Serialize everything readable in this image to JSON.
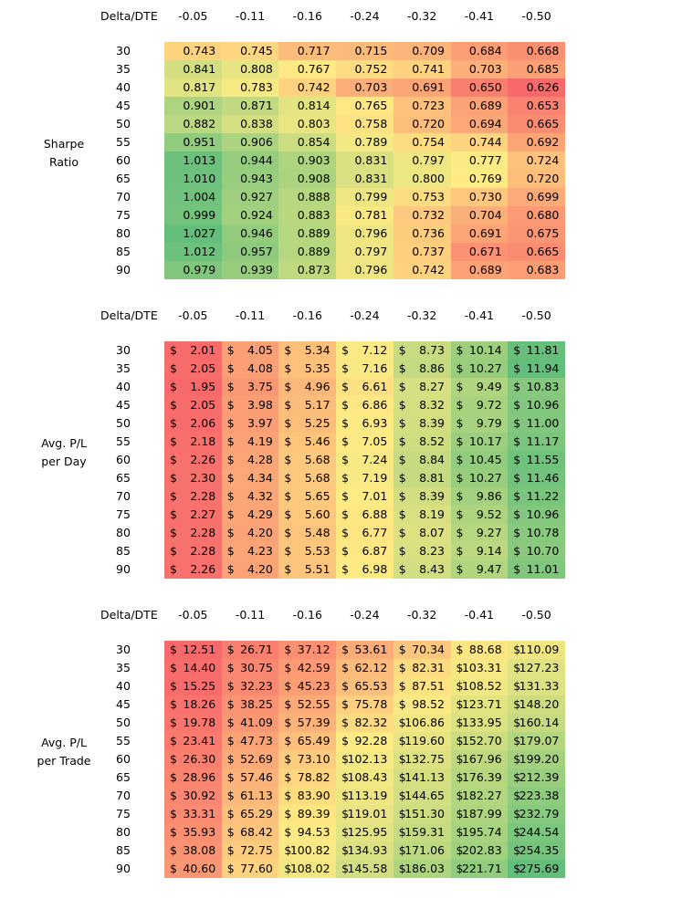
{
  "chart_data": [
    {
      "type": "heatmap",
      "title": "",
      "row_label": "Sharpe Ratio",
      "corner_label": "Delta/DTE",
      "columns": [
        "-0.05",
        "-0.11",
        "-0.16",
        "-0.24",
        "-0.32",
        "-0.41",
        "-0.50"
      ],
      "rows": [
        "30",
        "35",
        "40",
        "45",
        "50",
        "55",
        "60",
        "65",
        "70",
        "75",
        "80",
        "85",
        "90"
      ],
      "prefix": "",
      "decimals": 3,
      "color_scale": "high_green",
      "values": [
        [
          0.743,
          0.745,
          0.717,
          0.715,
          0.709,
          0.684,
          0.668
        ],
        [
          0.841,
          0.808,
          0.767,
          0.752,
          0.741,
          0.703,
          0.685
        ],
        [
          0.817,
          0.783,
          0.742,
          0.703,
          0.691,
          0.65,
          0.626
        ],
        [
          0.901,
          0.871,
          0.814,
          0.765,
          0.723,
          0.689,
          0.653
        ],
        [
          0.882,
          0.838,
          0.803,
          0.758,
          0.72,
          0.694,
          0.665
        ],
        [
          0.951,
          0.906,
          0.854,
          0.789,
          0.754,
          0.744,
          0.692
        ],
        [
          1.013,
          0.944,
          0.903,
          0.831,
          0.797,
          0.777,
          0.724
        ],
        [
          1.01,
          0.943,
          0.908,
          0.831,
          0.8,
          0.769,
          0.72
        ],
        [
          1.004,
          0.927,
          0.888,
          0.799,
          0.753,
          0.73,
          0.699
        ],
        [
          0.999,
          0.924,
          0.883,
          0.781,
          0.732,
          0.704,
          0.68
        ],
        [
          1.027,
          0.946,
          0.889,
          0.796,
          0.736,
          0.691,
          0.675
        ],
        [
          1.012,
          0.957,
          0.889,
          0.797,
          0.737,
          0.671,
          0.665
        ],
        [
          0.979,
          0.939,
          0.873,
          0.796,
          0.742,
          0.689,
          0.683
        ]
      ]
    },
    {
      "type": "heatmap",
      "title": "",
      "row_label": "Avg. P/L per Day",
      "row_label_lines": [
        "Avg. P/L",
        "per Day"
      ],
      "corner_label": "Delta/DTE",
      "columns": [
        "-0.05",
        "-0.11",
        "-0.16",
        "-0.24",
        "-0.32",
        "-0.41",
        "-0.50"
      ],
      "rows": [
        "30",
        "35",
        "40",
        "45",
        "50",
        "55",
        "60",
        "65",
        "70",
        "75",
        "80",
        "85",
        "90"
      ],
      "prefix": "$",
      "decimals": 2,
      "color_scale": "high_green",
      "values": [
        [
          2.01,
          4.05,
          5.34,
          7.12,
          8.73,
          10.14,
          11.81
        ],
        [
          2.05,
          4.08,
          5.35,
          7.16,
          8.86,
          10.27,
          11.94
        ],
        [
          1.95,
          3.75,
          4.96,
          6.61,
          8.27,
          9.49,
          10.83
        ],
        [
          2.05,
          3.98,
          5.17,
          6.86,
          8.32,
          9.72,
          10.96
        ],
        [
          2.06,
          3.97,
          5.25,
          6.93,
          8.39,
          9.79,
          11.0
        ],
        [
          2.18,
          4.19,
          5.46,
          7.05,
          8.52,
          10.17,
          11.17
        ],
        [
          2.26,
          4.28,
          5.68,
          7.24,
          8.84,
          10.45,
          11.55
        ],
        [
          2.3,
          4.34,
          5.68,
          7.19,
          8.81,
          10.27,
          11.46
        ],
        [
          2.28,
          4.32,
          5.65,
          7.01,
          8.39,
          9.86,
          11.22
        ],
        [
          2.27,
          4.29,
          5.6,
          6.88,
          8.19,
          9.52,
          10.96
        ],
        [
          2.28,
          4.2,
          5.48,
          6.77,
          8.07,
          9.27,
          10.78
        ],
        [
          2.28,
          4.23,
          5.53,
          6.87,
          8.23,
          9.14,
          10.7
        ],
        [
          2.26,
          4.2,
          5.51,
          6.98,
          8.43,
          9.47,
          11.01
        ]
      ]
    },
    {
      "type": "heatmap",
      "title": "",
      "row_label": "Avg. P/L per Trade",
      "row_label_lines": [
        "Avg. P/L",
        "per Trade"
      ],
      "corner_label": "Delta/DTE",
      "columns": [
        "-0.05",
        "-0.11",
        "-0.16",
        "-0.24",
        "-0.32",
        "-0.41",
        "-0.50"
      ],
      "rows": [
        "30",
        "35",
        "40",
        "45",
        "50",
        "55",
        "60",
        "65",
        "70",
        "75",
        "80",
        "85",
        "90"
      ],
      "prefix": "$",
      "decimals": 2,
      "color_scale": "high_green",
      "values": [
        [
          12.51,
          26.71,
          37.12,
          53.61,
          70.34,
          88.68,
          110.09
        ],
        [
          14.4,
          30.75,
          42.59,
          62.12,
          82.31,
          103.31,
          127.23
        ],
        [
          15.25,
          32.23,
          45.23,
          65.53,
          87.51,
          108.52,
          131.33
        ],
        [
          18.26,
          38.25,
          52.55,
          75.78,
          98.52,
          123.71,
          148.2
        ],
        [
          19.78,
          41.09,
          57.39,
          82.32,
          106.86,
          133.95,
          160.14
        ],
        [
          23.41,
          47.73,
          65.49,
          92.28,
          119.6,
          152.7,
          179.07
        ],
        [
          26.3,
          52.69,
          73.1,
          102.13,
          132.75,
          167.96,
          199.2
        ],
        [
          28.96,
          57.46,
          78.82,
          108.43,
          141.13,
          176.39,
          212.39
        ],
        [
          30.92,
          61.13,
          83.9,
          113.19,
          144.65,
          182.27,
          223.38
        ],
        [
          33.31,
          65.29,
          89.39,
          119.01,
          151.3,
          187.99,
          232.79
        ],
        [
          35.93,
          68.42,
          94.53,
          125.95,
          159.31,
          195.74,
          244.54
        ],
        [
          38.08,
          72.75,
          100.82,
          134.93,
          171.06,
          202.83,
          254.35
        ],
        [
          40.6,
          77.6,
          108.02,
          145.58,
          186.03,
          221.71,
          275.69
        ]
      ]
    }
  ],
  "colors": {
    "low": "#f8696b",
    "mid": "#ffeb84",
    "high": "#63be7b"
  }
}
